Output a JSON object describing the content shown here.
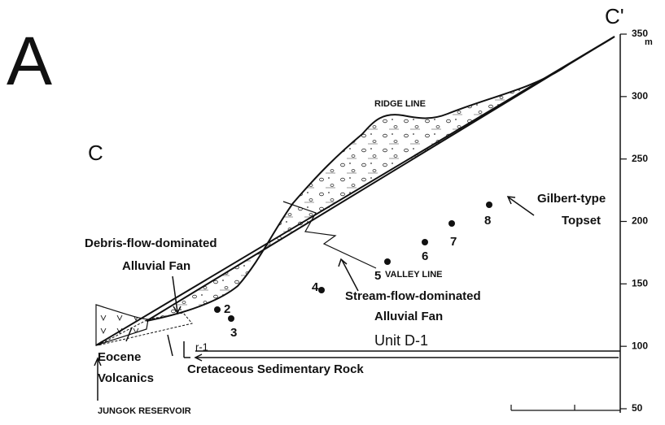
{
  "panel_label": "A",
  "section_ends": {
    "left": "C",
    "right": "C'"
  },
  "labels": {
    "ridge_line": "RIDGE LINE",
    "valley_line": "VALLEY LINE",
    "gilbert": [
      "Gilbert-type",
      "Topset"
    ],
    "debris": [
      "Debris-flow-dominated",
      "Alluvial Fan"
    ],
    "stream": [
      "Stream-flow-dominated",
      "Alluvial Fan"
    ],
    "unit": "Unit D-1",
    "eocene": [
      "Eocene",
      "Volcanics"
    ],
    "cretaceous": "Cretaceous Sedimentary Rock",
    "reservoir": "JUNGOK RESERVOIR",
    "r1": "r-1"
  },
  "samples": [
    "2",
    "3",
    "4",
    "5",
    "6",
    "7",
    "8"
  ],
  "scale": {
    "ticks": [
      350,
      300,
      250,
      200,
      150,
      100,
      50
    ],
    "unit": "m"
  }
}
